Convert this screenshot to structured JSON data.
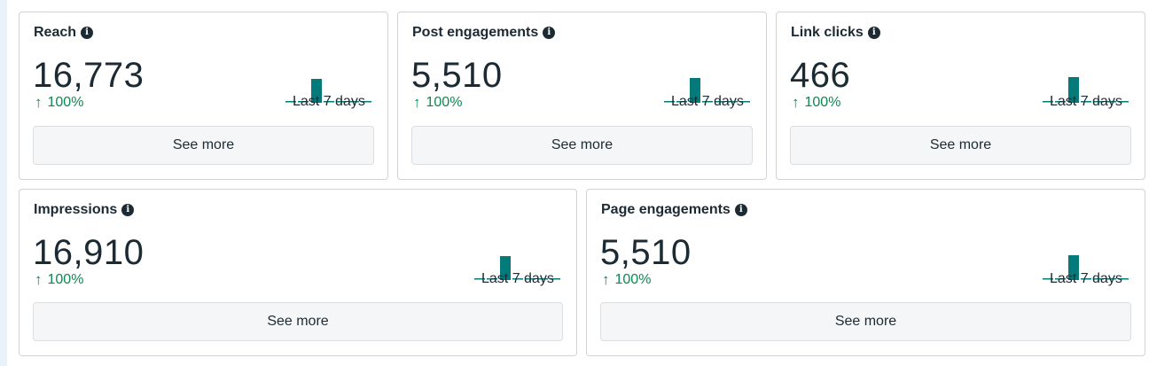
{
  "cards": [
    {
      "title": "Reach",
      "value": "16,773",
      "change": "100%",
      "period": "Last 7 days",
      "button": "See more"
    },
    {
      "title": "Post engagements",
      "value": "5,510",
      "change": "100%",
      "period": "Last 7 days",
      "button": "See more"
    },
    {
      "title": "Link clicks",
      "value": "466",
      "change": "100%",
      "period": "Last 7 days",
      "button": "See more"
    },
    {
      "title": "Impressions",
      "value": "16,910",
      "change": "100%",
      "period": "Last 7 days",
      "button": "See more"
    },
    {
      "title": "Page engagements",
      "value": "5,510",
      "change": "100%",
      "period": "Last 7 days",
      "button": "See more"
    }
  ],
  "colors": {
    "accent_bar": "#047a7a",
    "positive": "#0a8a50",
    "text": "#1c2b33"
  },
  "icons": {
    "info": "info-icon",
    "trend": "arrow-up-icon"
  },
  "info_glyph": "i",
  "arrow_glyph": "↑"
}
